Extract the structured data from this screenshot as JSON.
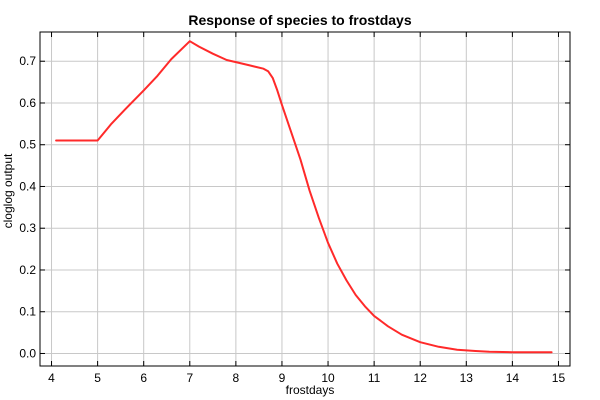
{
  "chart_data": {
    "type": "line",
    "title": "Response of species to frostdays",
    "xlabel": "frostdays",
    "ylabel": "cloglog output",
    "xlim": [
      3.75,
      15.25
    ],
    "ylim": [
      -0.03,
      0.77
    ],
    "x_ticks": [
      4,
      5,
      6,
      7,
      8,
      9,
      10,
      11,
      12,
      13,
      14,
      15
    ],
    "y_ticks": [
      0.0,
      0.1,
      0.2,
      0.3,
      0.4,
      0.5,
      0.6,
      0.7
    ],
    "y_tick_labels": [
      "0.0",
      "0.1",
      "0.2",
      "0.3",
      "0.4",
      "0.5",
      "0.6",
      "0.7"
    ],
    "grid": true,
    "series": [
      {
        "color": "#ff2a2a",
        "x": [
          4.1,
          4.5,
          5.0,
          5.3,
          5.6,
          6.0,
          6.3,
          6.6,
          7.0,
          7.2,
          7.5,
          7.8,
          8.0,
          8.3,
          8.6,
          8.7,
          8.8,
          8.9,
          9.0,
          9.2,
          9.4,
          9.6,
          9.8,
          10.0,
          10.2,
          10.4,
          10.6,
          10.8,
          11.0,
          11.3,
          11.6,
          12.0,
          12.4,
          12.8,
          13.2,
          13.5,
          14.0,
          14.4,
          14.85
        ],
        "y": [
          0.51,
          0.51,
          0.51,
          0.55,
          0.585,
          0.63,
          0.665,
          0.705,
          0.748,
          0.735,
          0.718,
          0.703,
          0.698,
          0.69,
          0.682,
          0.676,
          0.66,
          0.63,
          0.595,
          0.53,
          0.465,
          0.39,
          0.325,
          0.265,
          0.215,
          0.175,
          0.14,
          0.113,
          0.09,
          0.065,
          0.045,
          0.027,
          0.016,
          0.009,
          0.006,
          0.004,
          0.003,
          0.003,
          0.003
        ]
      }
    ]
  }
}
